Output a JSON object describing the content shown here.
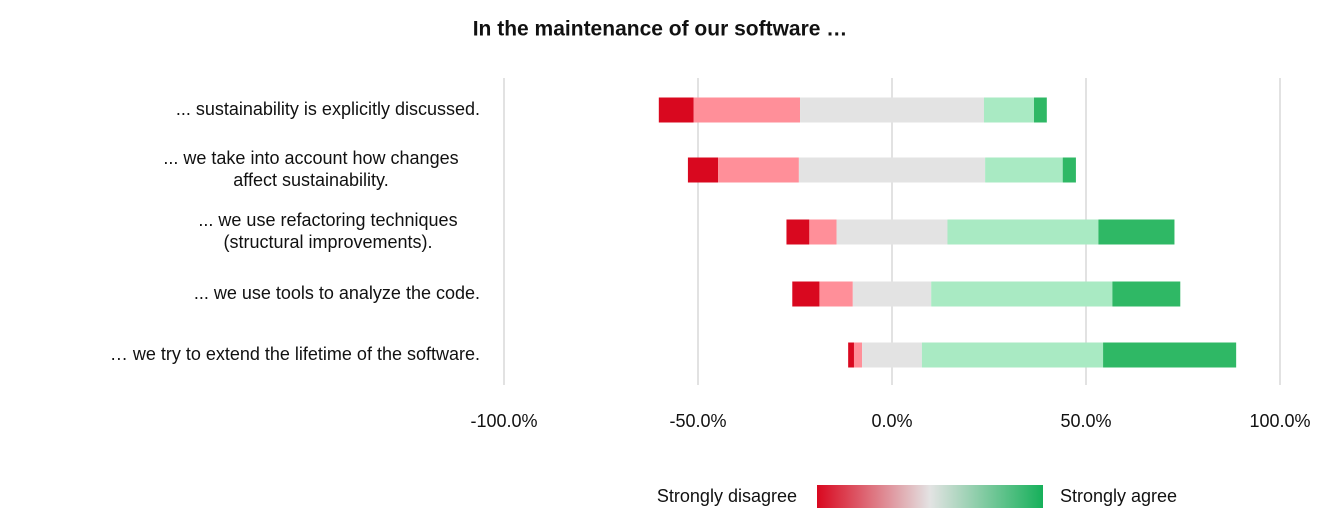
{
  "chart_data": {
    "type": "diverging-bar",
    "title": "In the maintenance of our software …",
    "categories": [
      [
        "... sustainability is explicitly discussed."
      ],
      [
        "... we take into account how changes",
        "affect sustainability."
      ],
      [
        "... we use refactoring techniques",
        "(structural improvements)."
      ],
      [
        "... we use tools to analyze the code."
      ],
      [
        "… we try to extend the lifetime of the software."
      ]
    ],
    "series": [
      {
        "color": "#d9081f",
        "values": [
          9.0,
          7.8,
          5.9,
          7.0,
          1.5
        ]
      },
      {
        "color": "#ff8f99",
        "values": [
          27.4,
          20.8,
          7.0,
          8.6,
          2.1
        ]
      },
      {
        "color": "#e3e3e3",
        "values": [
          47.4,
          48.0,
          28.6,
          20.2,
          15.4
        ]
      },
      {
        "color": "#a9eac3",
        "values": [
          12.9,
          20.0,
          38.9,
          46.7,
          46.7
        ]
      },
      {
        "color": "#2fb865",
        "values": [
          3.3,
          3.4,
          19.6,
          17.5,
          34.3
        ]
      }
    ],
    "neutral_series": 2,
    "xlim": [
      -100,
      100
    ],
    "xticks": [
      {
        "value": -100,
        "label": "-100.0%"
      },
      {
        "value": -50,
        "label": "-50.0%"
      },
      {
        "value": 0,
        "label": "0.0%"
      },
      {
        "value": 50,
        "label": "50.0%"
      },
      {
        "value": 100,
        "label": "100.0%"
      }
    ],
    "grid": true,
    "legend": {
      "low": "Strongly disagree",
      "high": "Strongly agree"
    }
  }
}
